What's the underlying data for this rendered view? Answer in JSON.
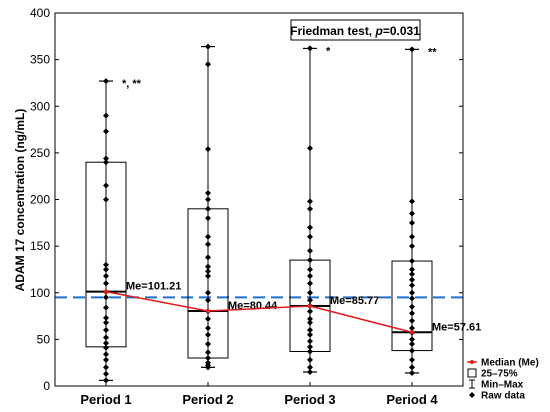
{
  "chart_data": {
    "type": "box",
    "title": "",
    "ylabel": "ADAM 17 concentration (ng/mL)",
    "xlabel": "",
    "ylim": [
      0,
      400
    ],
    "yticks": [
      0,
      50,
      100,
      150,
      200,
      250,
      300,
      350,
      400
    ],
    "categories": [
      "Period 1",
      "Period 2",
      "Period 3",
      "Period 4"
    ],
    "boxes": [
      {
        "category": "Period 1",
        "min": 6,
        "q1": 42,
        "median": 101.21,
        "q3": 240,
        "max": 327,
        "raw": [
          6,
          13,
          20,
          28,
          34,
          41,
          46,
          52,
          60,
          68,
          73,
          84,
          95,
          101,
          110,
          118,
          125,
          130,
          200,
          215,
          240,
          244,
          273,
          290,
          327
        ],
        "median_label": "Me=101.21",
        "significance": "*, **"
      },
      {
        "category": "Period 2",
        "min": 20,
        "q1": 30,
        "median": 80.44,
        "q3": 190,
        "max": 364,
        "raw": [
          20,
          22,
          25,
          30,
          36,
          45,
          55,
          62,
          72,
          80,
          92,
          100,
          118,
          123,
          128,
          138,
          152,
          160,
          180,
          190,
          200,
          207,
          254,
          345,
          364
        ],
        "median_label": "Me=80.44",
        "significance": ""
      },
      {
        "category": "Period 3",
        "min": 15,
        "q1": 37,
        "median": 85.77,
        "q3": 135,
        "max": 362,
        "raw": [
          15,
          20,
          28,
          37,
          42,
          48,
          55,
          60,
          68,
          72,
          80,
          86,
          92,
          100,
          110,
          118,
          125,
          135,
          145,
          160,
          170,
          190,
          198,
          255,
          362
        ],
        "median_label": "Me=85.77",
        "significance": "*"
      },
      {
        "category": "Period 4",
        "min": 14,
        "q1": 38,
        "median": 57.61,
        "q3": 134,
        "max": 361,
        "raw": [
          14,
          20,
          28,
          38,
          45,
          50,
          57,
          62,
          70,
          78,
          85,
          94,
          100,
          108,
          114,
          120,
          125,
          134,
          150,
          160,
          175,
          185,
          198,
          361
        ],
        "median_label": "Me=57.61",
        "significance": "**"
      }
    ],
    "reference_line": {
      "value": 95,
      "style": "dashed",
      "color": "#1f6fd1"
    },
    "median_line_color": "#e21a1a",
    "test_label": "Friedman test, ",
    "test_p_symbol": "p",
    "test_p_value": "=0.031",
    "legend": {
      "placement": "bottom-right",
      "items": [
        {
          "label": "Median (Me)",
          "symbol": "median-line"
        },
        {
          "label": "25–75%",
          "symbol": "box"
        },
        {
          "label": "Min–Max",
          "symbol": "whisker"
        },
        {
          "label": "Raw data",
          "symbol": "point"
        }
      ]
    }
  }
}
